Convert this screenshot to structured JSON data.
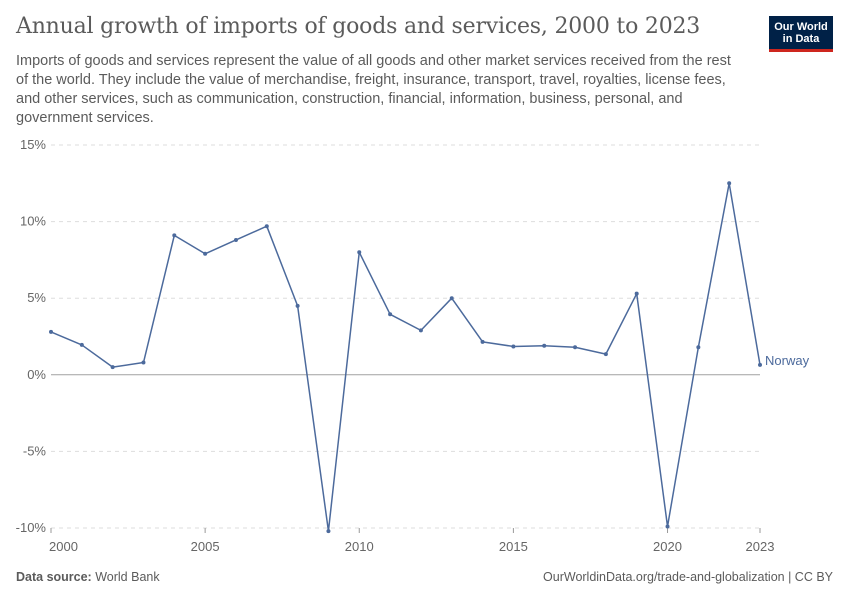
{
  "header": {
    "title": "Annual growth of imports of goods and services, 2000 to 2023",
    "subtitle": "Imports of goods and services represent the value of all goods and other market services received from the rest of the world. They include the value of merchandise, freight, insurance, transport, travel, royalties, license fees, and other services, such as communication, construction, financial, information, business, personal, and government services."
  },
  "logo": {
    "line1": "Our World",
    "line2": "in Data"
  },
  "footer": {
    "source_label": "Data source:",
    "source_value": "World Bank",
    "link": "OurWorldinData.org/trade-and-globalization | CC BY"
  },
  "colors": {
    "series": "#4c6a9c",
    "grid": "#dddddd",
    "zero": "#a1a1a1",
    "text": "#5b5b5b"
  },
  "chart_data": {
    "type": "line",
    "title": "Annual growth of imports of goods and services, 2000 to 2023",
    "xlabel": "",
    "ylabel": "",
    "xlim": [
      2000,
      2023
    ],
    "ylim": [
      -10,
      15
    ],
    "x_ticks": [
      2000,
      2005,
      2010,
      2015,
      2020,
      2023
    ],
    "y_ticks": [
      -10,
      -5,
      0,
      5,
      10,
      15
    ],
    "y_tick_labels": [
      "-10%",
      "-5%",
      "0%",
      "5%",
      "10%",
      "15%"
    ],
    "grid": true,
    "legend": "end-of-line label",
    "x": [
      2000,
      2001,
      2002,
      2003,
      2004,
      2005,
      2006,
      2007,
      2008,
      2009,
      2010,
      2011,
      2012,
      2013,
      2014,
      2015,
      2016,
      2017,
      2018,
      2019,
      2020,
      2021,
      2022,
      2023
    ],
    "series": [
      {
        "name": "Norway",
        "values": [
          2.8,
          1.95,
          0.5,
          0.8,
          9.1,
          7.9,
          8.8,
          9.7,
          4.5,
          -10.2,
          8.0,
          3.95,
          2.9,
          5.0,
          2.15,
          1.85,
          1.9,
          1.8,
          1.35,
          5.3,
          -9.9,
          1.8,
          12.5,
          0.65
        ]
      }
    ]
  }
}
